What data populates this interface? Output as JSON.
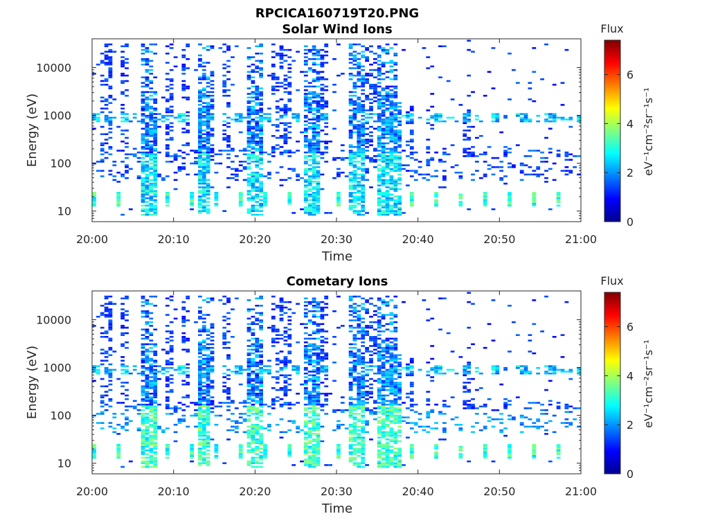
{
  "figure_title": "RPCICA160719T20.PNG",
  "chart_data": [
    {
      "type": "heatmap",
      "title": "Solar Wind Ions",
      "xlabel": "Time",
      "ylabel": "Energy (eV)",
      "xticks": [
        "20:00",
        "20:10",
        "20:20",
        "20:30",
        "20:40",
        "20:50",
        "21:00"
      ],
      "xlim": [
        "20:00",
        "21:00"
      ],
      "yscale": "log",
      "yticks": [
        10,
        100,
        1000,
        10000
      ],
      "ytick_labels": [
        "10",
        "100",
        "1000",
        "10000"
      ],
      "ylim": [
        6,
        40000
      ],
      "colorbar": {
        "title": "Flux",
        "label": "eV⁻¹cm⁻²sr⁻¹s⁻¹",
        "ticks": [
          0,
          2,
          4,
          6
        ],
        "range": [
          0,
          7.4
        ],
        "colormap": "jet"
      },
      "description": "Sparse energy-time spectrogram; vertical streaks of 1-3 flux near 20:06, 20:13, 20:19, 20:26, 20:32, 20:36; bands at ~900 eV, 50-150 eV, 12-20 eV."
    },
    {
      "type": "heatmap",
      "title": "Cometary Ions",
      "xlabel": "Time",
      "ylabel": "Energy (eV)",
      "xticks": [
        "20:00",
        "20:10",
        "20:20",
        "20:30",
        "20:40",
        "20:50",
        "21:00"
      ],
      "xlim": [
        "20:00",
        "21:00"
      ],
      "yscale": "log",
      "yticks": [
        10,
        100,
        1000,
        10000
      ],
      "ytick_labels": [
        "10",
        "100",
        "1000",
        "10000"
      ],
      "ylim": [
        6,
        40000
      ],
      "colorbar": {
        "title": "Flux",
        "label": "eV⁻¹cm⁻²sr⁻¹s⁻¹",
        "ticks": [
          0,
          2,
          4,
          6
        ],
        "range": [
          0,
          7.4
        ],
        "colormap": "jet"
      },
      "description": "Similar structure to upper panel with stronger low-energy (40-200 eV) flux around 20:30-20:36."
    }
  ]
}
